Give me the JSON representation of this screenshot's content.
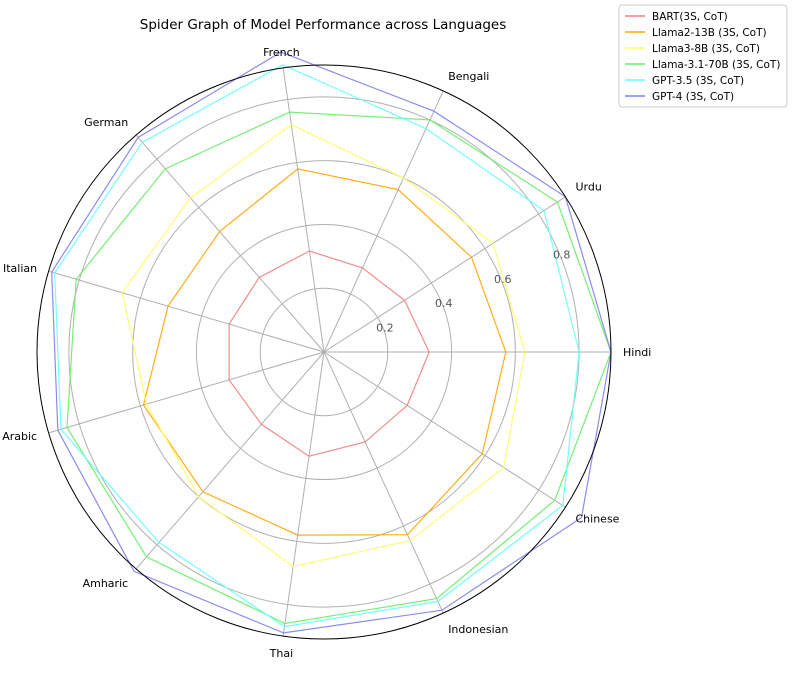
{
  "chart_data": {
    "type": "radar",
    "title": "Spider Graph of Model Performance across Languages",
    "categories": [
      "Hindi",
      "Urdu",
      "Bengali",
      "French",
      "German",
      "Italian",
      "Arabic",
      "Amharic",
      "Thai",
      "Indonesian",
      "Chinese"
    ],
    "r_ticks": [
      0.2,
      0.4,
      0.6,
      0.8
    ],
    "r_tick_labels": [
      "0.2",
      "0.4",
      "0.6",
      "0.8"
    ],
    "rlim": [
      0,
      0.9
    ],
    "grid": true,
    "legend_position": "top-right",
    "series": [
      {
        "name": "BART(3S, CoT)",
        "color": "#f08080",
        "values": [
          0.33,
          0.3,
          0.29,
          0.32,
          0.31,
          0.31,
          0.31,
          0.3,
          0.33,
          0.31,
          0.31
        ]
      },
      {
        "name": "Llama2-13B (3S, CoT)",
        "color": "#ffa500",
        "values": [
          0.57,
          0.55,
          0.56,
          0.58,
          0.5,
          0.51,
          0.59,
          0.58,
          0.58,
          0.63,
          0.59
        ]
      },
      {
        "name": "Llama3-8B (3S, CoT)",
        "color": "#ffff66",
        "values": [
          0.63,
          0.63,
          0.6,
          0.72,
          0.64,
          0.66,
          0.58,
          0.6,
          0.68,
          0.65,
          0.67
        ]
      },
      {
        "name": "Llama-3.1-70B (3S, CoT)",
        "color": "#66ee66",
        "values": [
          0.9,
          0.87,
          0.8,
          0.76,
          0.76,
          0.81,
          0.84,
          0.85,
          0.86,
          0.85,
          0.86
        ]
      },
      {
        "name": "GPT-3.5 (3S, CoT)",
        "color": "#66ffff",
        "values": [
          0.8,
          0.82,
          0.77,
          0.91,
          0.87,
          0.88,
          0.86,
          0.79,
          0.87,
          0.86,
          0.89
        ]
      },
      {
        "name": "GPT-4 (3S, CoT)",
        "color": "#8080ee",
        "values": [
          0.9,
          0.9,
          0.83,
          0.95,
          0.89,
          0.89,
          0.87,
          0.91,
          0.89,
          0.89,
          0.96
        ]
      }
    ]
  }
}
